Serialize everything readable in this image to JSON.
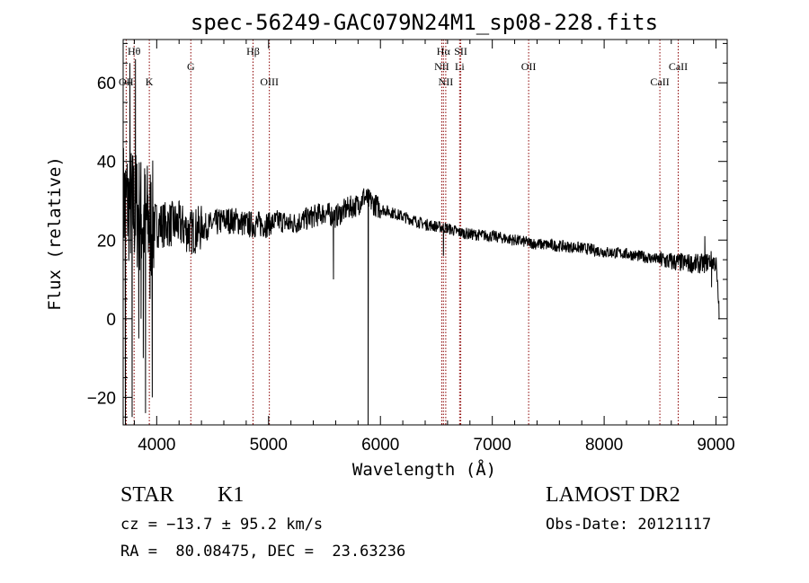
{
  "chart_data": {
    "type": "line",
    "title": "spec-56249-GAC079N24M1_sp08-228.fits",
    "xlabel": "Wavelength (Å)",
    "ylabel": "Flux (relative)",
    "xlim": [
      3700,
      9100
    ],
    "ylim": [
      -27,
      71
    ],
    "xticks": [
      4000,
      5000,
      6000,
      7000,
      8000,
      9000
    ],
    "yticks": [
      -20,
      0,
      20,
      40,
      60
    ],
    "grid": false,
    "line_color": "#000000",
    "marker_color": "#8b0000",
    "anchors": [
      [
        3700,
        30
      ],
      [
        3800,
        28
      ],
      [
        3900,
        25
      ],
      [
        4000,
        24
      ],
      [
        4100,
        24
      ],
      [
        4200,
        24
      ],
      [
        4300,
        22
      ],
      [
        4400,
        23
      ],
      [
        4500,
        24
      ],
      [
        4600,
        25
      ],
      [
        4700,
        25
      ],
      [
        4800,
        24
      ],
      [
        4900,
        24
      ],
      [
        5000,
        24
      ],
      [
        5100,
        25
      ],
      [
        5200,
        24
      ],
      [
        5300,
        25
      ],
      [
        5400,
        26
      ],
      [
        5500,
        27
      ],
      [
        5600,
        26
      ],
      [
        5700,
        28
      ],
      [
        5800,
        29
      ],
      [
        5850,
        31
      ],
      [
        5900,
        30
      ],
      [
        5950,
        29
      ],
      [
        6000,
        28
      ],
      [
        6100,
        27
      ],
      [
        6200,
        26
      ],
      [
        6300,
        25
      ],
      [
        6400,
        24
      ],
      [
        6500,
        23.5
      ],
      [
        6600,
        23
      ],
      [
        6700,
        22
      ],
      [
        6800,
        21.5
      ],
      [
        7000,
        21
      ],
      [
        7200,
        20
      ],
      [
        7400,
        19
      ],
      [
        7600,
        18.5
      ],
      [
        7800,
        18
      ],
      [
        8000,
        17
      ],
      [
        8200,
        16.5
      ],
      [
        8400,
        15.5
      ],
      [
        8600,
        14.5
      ],
      [
        8800,
        14
      ],
      [
        8900,
        14
      ],
      [
        8950,
        15
      ],
      [
        9000,
        14
      ],
      [
        9030,
        1
      ]
    ],
    "features": [
      {
        "x": 3720,
        "y": -27
      },
      {
        "x": 3760,
        "y": 65
      },
      {
        "x": 3780,
        "y": -25
      },
      {
        "x": 3810,
        "y": 66
      },
      {
        "x": 3840,
        "y": -5
      },
      {
        "x": 3860,
        "y": 0
      },
      {
        "x": 3880,
        "y": -10
      },
      {
        "x": 3900,
        "y": -24
      },
      {
        "x": 3940,
        "y": 5
      },
      {
        "x": 3960,
        "y": -20
      },
      {
        "x": 5580,
        "y": 10
      },
      {
        "x": 5890,
        "y": -27
      },
      {
        "x": 6563,
        "y": 16
      },
      {
        "x": 8900,
        "y": 21
      },
      {
        "x": 8960,
        "y": 8
      }
    ],
    "lines": [
      {
        "name": "Hθ",
        "x": 3798,
        "row": 1
      },
      {
        "name": "OII",
        "x": 3727,
        "row": 3
      },
      {
        "name": "K",
        "x": 3934,
        "row": 3
      },
      {
        "name": "G",
        "x": 4305,
        "row": 2
      },
      {
        "name": "Hβ",
        "x": 4861,
        "row": 1
      },
      {
        "name": "OIII",
        "x": 5007,
        "row": 3
      },
      {
        "name": "Hα",
        "x": 6563,
        "row": 1
      },
      {
        "name": "SII",
        "x": 6718,
        "row": 1
      },
      {
        "name": "NII",
        "x": 6548,
        "row": 2
      },
      {
        "name": "Li",
        "x": 6708,
        "row": 2
      },
      {
        "name": "NII",
        "x": 6584,
        "row": 3
      },
      {
        "name": "OII",
        "x": 7325,
        "row": 2
      },
      {
        "name": "CaII",
        "x": 8662,
        "row": 2
      },
      {
        "name": "CaII",
        "x": 8498,
        "row": 3
      }
    ]
  },
  "info": {
    "class_label": "STAR",
    "subclass": "K1",
    "survey": "LAMOST DR2",
    "cz": "cz = −13.7 ± 95.2 km/s",
    "obs_date": "Obs-Date: 20121117",
    "coords": "RA =  80.08475, DEC =  23.63236"
  }
}
